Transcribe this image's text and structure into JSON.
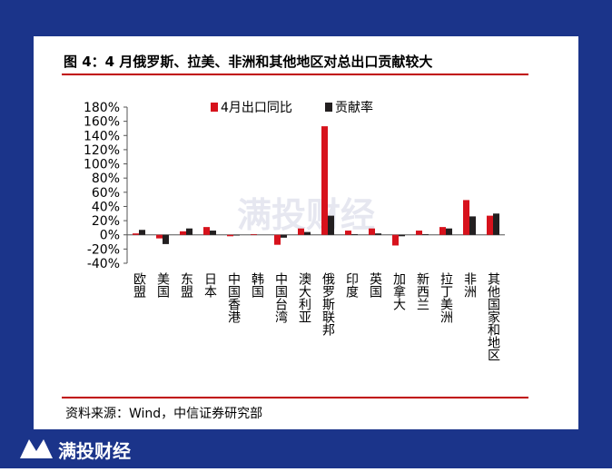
{
  "chart_data": {
    "type": "bar",
    "title": "图 4：4 月俄罗斯、拉美、非洲和其他地区对总出口贡献较大",
    "source": "资料来源：Wind，中信证券研究部",
    "categories": [
      "欧盟",
      "美国",
      "东盟",
      "日本",
      "中国香港",
      "韩国",
      "中国台湾",
      "澳大利亚",
      "俄罗斯联邦",
      "印度",
      "英国",
      "加拿大",
      "新西兰",
      "拉丁美洲",
      "非洲",
      "其他国家和地区"
    ],
    "series": [
      {
        "name": "4月出口同比",
        "color": "#d7121c",
        "values": [
          2,
          -5,
          5,
          11,
          -2,
          1,
          -14,
          9,
          153,
          6,
          9,
          -15,
          6,
          11,
          49,
          27
        ]
      },
      {
        "name": "贡献率",
        "color": "#231f20",
        "values": [
          7,
          -13,
          9,
          6,
          -1,
          0,
          -4,
          4,
          27,
          1,
          2,
          -2,
          1,
          9,
          26,
          30
        ]
      }
    ],
    "ylim": [
      -40,
      180
    ],
    "yticks": [
      {
        "value": -40,
        "label": "-40%"
      },
      {
        "value": -20,
        "label": "-20%"
      },
      {
        "value": 0,
        "label": "0%"
      },
      {
        "value": 20,
        "label": "20%"
      },
      {
        "value": 40,
        "label": "40%"
      },
      {
        "value": 60,
        "label": "60%"
      },
      {
        "value": 80,
        "label": "80%"
      },
      {
        "value": 100,
        "label": "100%"
      },
      {
        "value": 120,
        "label": "120%"
      },
      {
        "value": 140,
        "label": "140%"
      },
      {
        "value": 160,
        "label": "160%"
      },
      {
        "value": 180,
        "label": "180%"
      }
    ],
    "legend": "top"
  },
  "watermark": "满投财经",
  "brand": "满投财经"
}
